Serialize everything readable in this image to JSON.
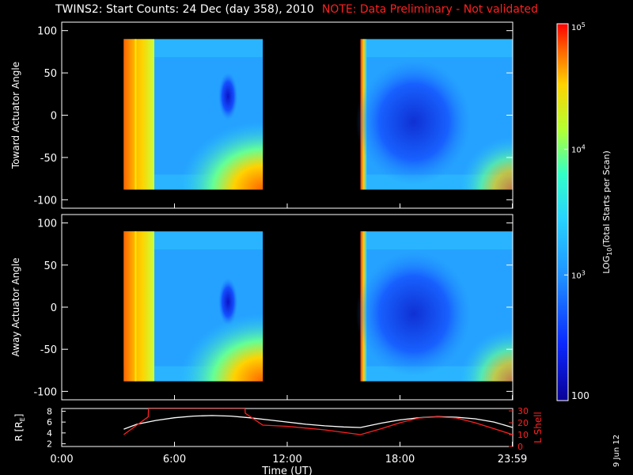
{
  "title": "TWINS2: Start Counts: 24 Dec (day 358), 2010",
  "note": "NOTE: Data Preliminary - Not validated",
  "date_stamp": "9 Jun 12",
  "colors": {
    "background": "#000000",
    "axes": "#ffffff",
    "note": "#ff2020",
    "lshell": "#ff2020",
    "radius": "#ffffff"
  },
  "chart_data": [
    {
      "type": "heatmap",
      "name": "toward",
      "ylabel": "Toward Actuator Angle",
      "ylim": [
        -110,
        110
      ],
      "yticks": [
        100,
        50,
        0,
        -50,
        -100
      ],
      "xlim": [
        0,
        24
      ],
      "data_segments": [
        {
          "start_hour": 3.3,
          "end_hour": 10.7
        },
        {
          "start_hour": 15.9,
          "end_hour": 24.0
        }
      ],
      "angle_range": [
        -88,
        90
      ],
      "colorbar": {
        "scale": "log",
        "range": [
          100,
          100000
        ]
      }
    },
    {
      "type": "heatmap",
      "name": "away",
      "ylabel": "Away Actuator Angle",
      "ylim": [
        -110,
        110
      ],
      "yticks": [
        100,
        50,
        0,
        -50,
        -100
      ],
      "xlim": [
        0,
        24
      ],
      "data_segments": [
        {
          "start_hour": 3.3,
          "end_hour": 10.7
        },
        {
          "start_hour": 15.9,
          "end_hour": 24.0
        }
      ],
      "angle_range": [
        -88,
        90
      ],
      "colorbar": {
        "scale": "log",
        "range": [
          100,
          100000
        ]
      }
    },
    {
      "type": "line",
      "name": "orbit",
      "xlabel": "Time (UT)",
      "xticks": [
        "0:00",
        "6:00",
        "12:00",
        "18:00",
        "23:59"
      ],
      "xtick_hours": [
        0,
        6,
        12,
        18,
        23.98
      ],
      "y_left": {
        "label": "R [R",
        "label_sub": "E",
        "label_end": "]",
        "ticks": [
          2,
          4,
          6,
          8
        ],
        "ylim": [
          1.5,
          8.5
        ]
      },
      "y_right": {
        "label": "L Shell",
        "ticks": [
          0,
          10,
          20,
          30
        ],
        "ylim": [
          0,
          32
        ]
      },
      "series": [
        {
          "name": "R [RE]",
          "axis": "left",
          "x": [
            3.3,
            4,
            5,
            6,
            7,
            8,
            9,
            10,
            11,
            12,
            13,
            14,
            15,
            15.9,
            17,
            18,
            19,
            20,
            21,
            22,
            23,
            24
          ],
          "y": [
            4.7,
            5.6,
            6.3,
            6.8,
            7.1,
            7.2,
            7.1,
            6.8,
            6.4,
            6.0,
            5.6,
            5.3,
            5.1,
            5.0,
            5.8,
            6.4,
            6.8,
            7.0,
            6.9,
            6.6,
            6.0,
            5.0
          ]
        },
        {
          "name": "L Shell",
          "axis": "right",
          "x": [
            3.3,
            4.6,
            4.62,
            9.75,
            9.77,
            10.7,
            12,
            14,
            15.9,
            17,
            18,
            19,
            20,
            21,
            22,
            23,
            24
          ],
          "y": [
            10,
            25,
            32,
            32,
            28,
            18,
            17,
            14,
            10,
            15,
            20,
            24,
            25,
            24,
            20,
            15,
            10
          ]
        }
      ]
    }
  ],
  "colorbar": {
    "label": "LOG",
    "label_sub": "10",
    "label_rest": "(Total Starts per Scan)",
    "ticks": [
      "10",
      "10",
      "10",
      "100"
    ],
    "tick_exponents": [
      "5",
      "4",
      "3",
      ""
    ],
    "tick_values": [
      100000,
      10000,
      1000,
      100
    ]
  }
}
